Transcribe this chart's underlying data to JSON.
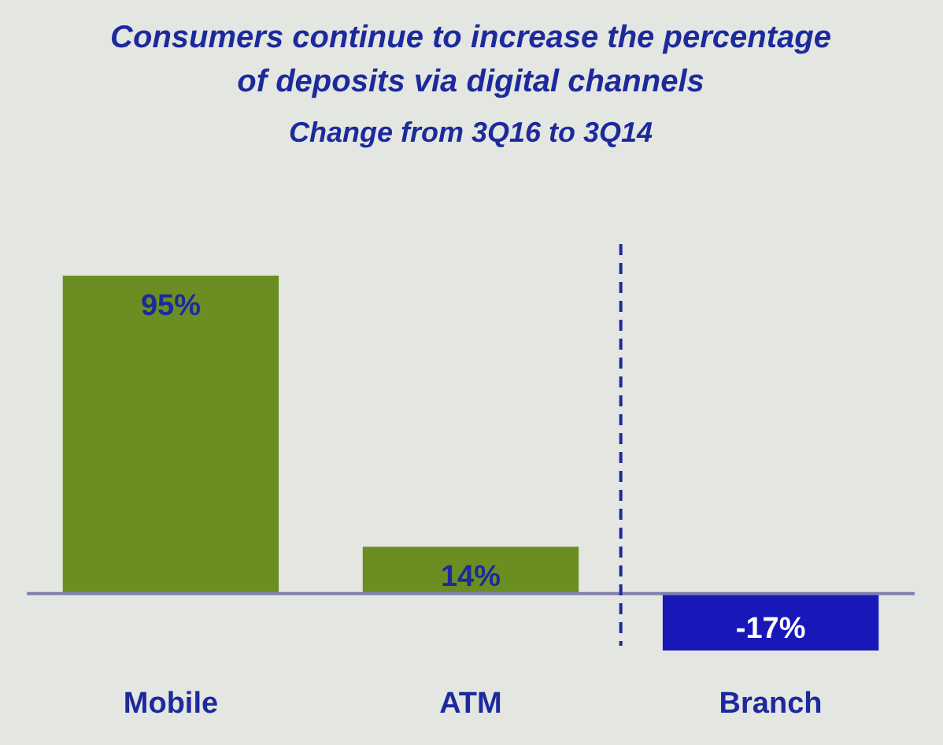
{
  "chart_data": {
    "type": "bar",
    "title": "Consumers continue to increase the percentage\nof deposits via digital channels",
    "subtitle": "Change from 3Q16 to 3Q14",
    "categories": [
      "Mobile",
      "ATM",
      "Branch"
    ],
    "values": [
      95,
      14,
      -17
    ],
    "colors": [
      "#6b8e23",
      "#6b8e23",
      "#1818b8"
    ],
    "value_labels": [
      "95%",
      "14%",
      "-17%"
    ],
    "ref_lines": [
      {
        "axis": "y",
        "value": 0,
        "color": "#8080b0"
      },
      {
        "axis": "x",
        "value": "Branch",
        "color": "#1c2a9c",
        "line_style": "dashed"
      }
    ]
  }
}
